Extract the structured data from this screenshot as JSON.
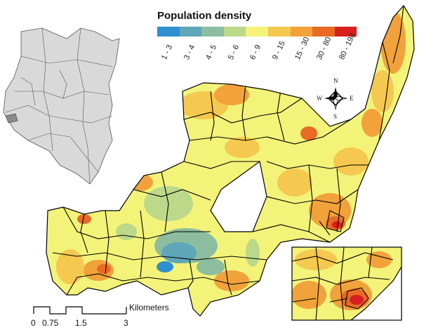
{
  "legend": {
    "title": "Population density",
    "classes": [
      {
        "label": "1 - 3",
        "color": "#2f8fcf"
      },
      {
        "label": "3 - 4",
        "color": "#5ea6b8"
      },
      {
        "label": "4 - 5",
        "color": "#8bbd9e"
      },
      {
        "label": "5 - 6",
        "color": "#bcd98a"
      },
      {
        "label": "6 - 9",
        "color": "#f3f37a"
      },
      {
        "label": "9 - 15",
        "color": "#f5c84f"
      },
      {
        "label": "15 - 30",
        "color": "#f2a23a"
      },
      {
        "label": "30 - 80",
        "color": "#e86a25"
      },
      {
        "label": "80 - 198",
        "color": "#d81f1f"
      }
    ]
  },
  "scale_bar": {
    "ticks": [
      "0",
      "0.75",
      "1.5",
      "3"
    ],
    "unit": "Kilometers"
  },
  "compass": {
    "north": "N",
    "south": "S",
    "east": "E",
    "west": "W"
  },
  "colors": {
    "boundary": "#000000",
    "locator_fill": "#d9d9d9",
    "locator_highlight": "#8c8c8c"
  }
}
